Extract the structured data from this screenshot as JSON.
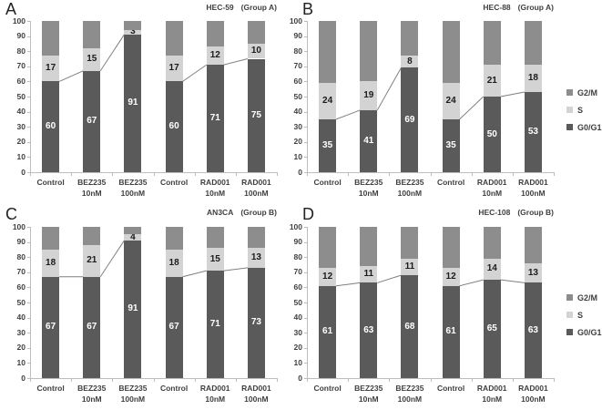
{
  "colors": {
    "g0g1": "#5a5a5a",
    "s": "#d3d3d3",
    "g2m": "#8d8d8d",
    "line_overlay": "#7f7f7f",
    "axis": "#bdbdbd",
    "axis_text": "#3f3f3f",
    "label_on_dark": "#ffffff",
    "label_on_light": "#1a1a1a"
  },
  "legend": {
    "items": [
      {
        "label": "G2/M",
        "key": "g2m"
      },
      {
        "label": "S",
        "key": "s"
      },
      {
        "label": "G0/G1",
        "key": "g0g1"
      }
    ]
  },
  "chart_data": [
    {
      "type": "bar",
      "stacked": true,
      "panel_letter": "A",
      "title": "HEC-59",
      "group_label": "(Group A)",
      "ylim": [
        0,
        100
      ],
      "ytick_step": 10,
      "grid": false,
      "legend_position": "none",
      "categories": [
        "Control",
        "BEZ235\n10nM",
        "BEZ235\n100nM",
        "Control",
        "RAD001\n10nM",
        "RAD001\n100nM"
      ],
      "series": [
        {
          "name": "G0/G1",
          "key": "g0g1",
          "values": [
            60,
            67,
            91,
            60,
            71,
            75
          ],
          "labels_shown": true,
          "label_color": "#ffffff"
        },
        {
          "name": "S",
          "key": "s",
          "values": [
            17,
            15,
            3,
            17,
            12,
            10
          ],
          "labels_shown": true,
          "label_color": "#1a1a1a"
        },
        {
          "name": "G2/M",
          "key": "g2m",
          "values": [
            23,
            18,
            6,
            23,
            17,
            15
          ],
          "labels_shown": false,
          "label_color": ""
        }
      ],
      "line_overlay": {
        "follows_series": "G0/G1",
        "groups": [
          [
            0,
            1,
            2
          ],
          [
            3,
            4,
            5
          ]
        ]
      }
    },
    {
      "type": "bar",
      "stacked": true,
      "panel_letter": "B",
      "title": "HEC-88",
      "group_label": "(Group A)",
      "ylim": [
        0,
        100
      ],
      "ytick_step": 10,
      "grid": false,
      "legend_position": "right",
      "categories": [
        "Control",
        "BEZ235\n10nM",
        "BEZ235\n100nM",
        "Control",
        "RAD001\n10nM",
        "RAD001\n100nM"
      ],
      "series": [
        {
          "name": "G0/G1",
          "key": "g0g1",
          "values": [
            35,
            41,
            69,
            35,
            50,
            53
          ],
          "labels_shown": true,
          "label_color": "#ffffff"
        },
        {
          "name": "S",
          "key": "s",
          "values": [
            24,
            19,
            8,
            24,
            21,
            18
          ],
          "labels_shown": true,
          "label_color": "#1a1a1a"
        },
        {
          "name": "G2/M",
          "key": "g2m",
          "values": [
            41,
            40,
            23,
            41,
            29,
            29
          ],
          "labels_shown": false,
          "label_color": ""
        }
      ],
      "line_overlay": {
        "follows_series": "G0/G1",
        "groups": [
          [
            0,
            1,
            2
          ],
          [
            3,
            4,
            5
          ]
        ]
      }
    },
    {
      "type": "bar",
      "stacked": true,
      "panel_letter": "C",
      "title": "AN3CA",
      "group_label": "(Group B)",
      "ylim": [
        0,
        100
      ],
      "ytick_step": 10,
      "grid": false,
      "legend_position": "none",
      "categories": [
        "Control",
        "BEZ235\n10nM",
        "BEZ235\n100nM",
        "Control",
        "RAD001\n10nM",
        "RAD001\n100nM"
      ],
      "series": [
        {
          "name": "G0/G1",
          "key": "g0g1",
          "values": [
            67,
            67,
            91,
            67,
            71,
            73
          ],
          "labels_shown": true,
          "label_color": "#ffffff"
        },
        {
          "name": "S",
          "key": "s",
          "values": [
            18,
            21,
            4,
            18,
            15,
            13
          ],
          "labels_shown": true,
          "label_color": "#1a1a1a"
        },
        {
          "name": "G2/M",
          "key": "g2m",
          "values": [
            15,
            12,
            5,
            15,
            14,
            14
          ],
          "labels_shown": false,
          "label_color": ""
        }
      ],
      "line_overlay": {
        "follows_series": "G0/G1",
        "groups": [
          [
            0,
            1,
            2
          ],
          [
            3,
            4,
            5
          ]
        ]
      }
    },
    {
      "type": "bar",
      "stacked": true,
      "panel_letter": "D",
      "title": "HEC-108",
      "group_label": "(Group B)",
      "ylim": [
        0,
        100
      ],
      "ytick_step": 10,
      "grid": false,
      "legend_position": "right",
      "categories": [
        "Control",
        "BEZ235\n10nM",
        "BEZ235\n100nM",
        "Control",
        "RAD001\n10nM",
        "RAD001\n100nM"
      ],
      "series": [
        {
          "name": "G0/G1",
          "key": "g0g1",
          "values": [
            61,
            63,
            68,
            61,
            65,
            63
          ],
          "labels_shown": true,
          "label_color": "#ffffff"
        },
        {
          "name": "S",
          "key": "s",
          "values": [
            12,
            11,
            11,
            12,
            14,
            13
          ],
          "labels_shown": true,
          "label_color": "#1a1a1a"
        },
        {
          "name": "G2/M",
          "key": "g2m",
          "values": [
            27,
            26,
            21,
            27,
            21,
            24
          ],
          "labels_shown": false,
          "label_color": ""
        }
      ],
      "line_overlay": {
        "follows_series": "G0/G1",
        "groups": [
          [
            0,
            1,
            2
          ],
          [
            3,
            4,
            5
          ]
        ]
      }
    }
  ]
}
